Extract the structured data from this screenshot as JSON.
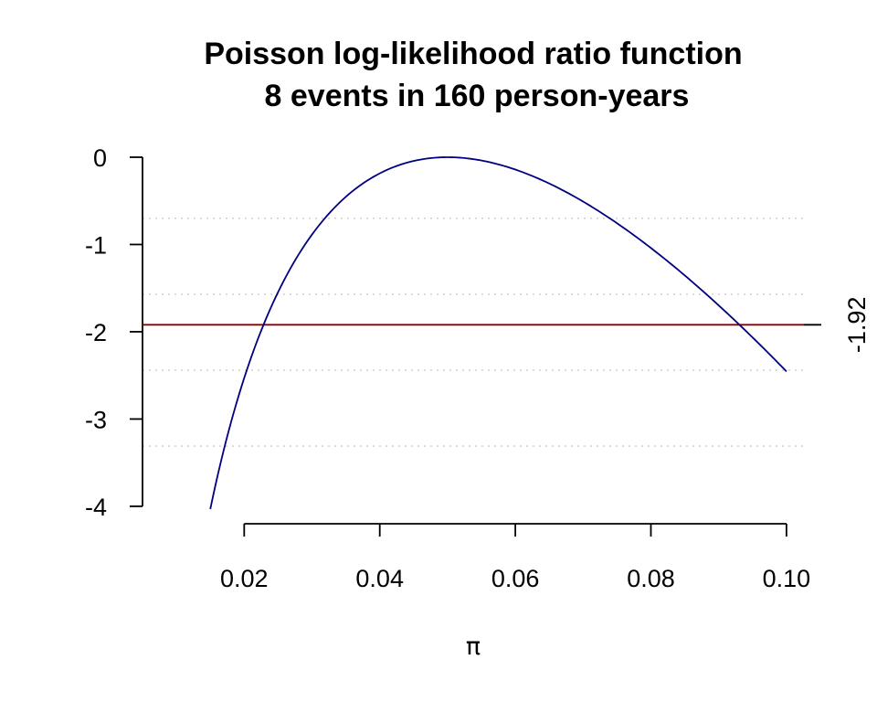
{
  "chart_data": {
    "type": "line",
    "title": "Poisson log-likelihood ratio function",
    "subtitle": "8 events in 160 person-years",
    "xlabel": "π",
    "ylabel": "",
    "xlim": [
      0.005,
      0.105
    ],
    "ylim": [
      -4.2,
      0
    ],
    "x_ticks": [
      "0.02",
      "0.04",
      "0.06",
      "0.08",
      "0.10"
    ],
    "y_ticks": [
      "0",
      "-1",
      "-2",
      "-3",
      "-4"
    ],
    "events": 8,
    "person_years": 160,
    "x_range": [
      0.015,
      0.1
    ],
    "curve_color": "#000080",
    "cutoff": {
      "value": -1.92,
      "label": "-1.92",
      "color": "#8b0000"
    },
    "dotted_gridlines_y": [
      -0.7,
      -1.57,
      -2.44,
      -3.31
    ],
    "grid_color": "#d3d3d3"
  }
}
